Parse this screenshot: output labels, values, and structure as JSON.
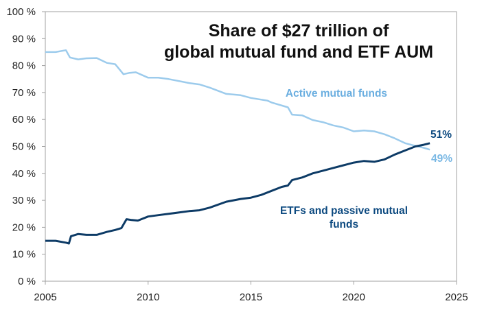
{
  "chart_data": {
    "type": "line",
    "title": [
      "Share of $27 trillion of",
      "global mutual fund and ETF AUM"
    ],
    "xlim": [
      2005,
      2025
    ],
    "ylim": [
      0,
      100
    ],
    "x_ticks": [
      "2005",
      "2010",
      "2015",
      "2020",
      "2025"
    ],
    "y_ticks": [
      "0 %",
      "10 %",
      "20 %",
      "30 %",
      "40 %",
      "50 %",
      "60 %",
      "70 %",
      "80 %",
      "90 %",
      "100 %"
    ],
    "grid": false,
    "series": [
      {
        "name": "Active mutual funds",
        "color": "#9ccbec",
        "end_label": "49%",
        "points": [
          [
            2005,
            85
          ],
          [
            2005.5,
            85
          ],
          [
            2006,
            85.7
          ],
          [
            2006.2,
            83
          ],
          [
            2006.6,
            82.3
          ],
          [
            2007,
            82.7
          ],
          [
            2007.5,
            82.8
          ],
          [
            2008,
            81
          ],
          [
            2008.4,
            80.5
          ],
          [
            2008.8,
            76.8
          ],
          [
            2009.1,
            77.3
          ],
          [
            2009.4,
            77.5
          ],
          [
            2010,
            75.5
          ],
          [
            2010.5,
            75.5
          ],
          [
            2011,
            75
          ],
          [
            2012,
            73.5
          ],
          [
            2012.5,
            73
          ],
          [
            2013,
            71.8
          ],
          [
            2013.8,
            69.5
          ],
          [
            2014.5,
            69
          ],
          [
            2015,
            68
          ],
          [
            2015.8,
            67
          ],
          [
            2016,
            66.3
          ],
          [
            2016.8,
            64.5
          ],
          [
            2017,
            61.8
          ],
          [
            2017.5,
            61.5
          ],
          [
            2018,
            59.8
          ],
          [
            2018.5,
            59
          ],
          [
            2019,
            57.8
          ],
          [
            2019.5,
            57
          ],
          [
            2020,
            55.6
          ],
          [
            2020.5,
            55.9
          ],
          [
            2021,
            55.6
          ],
          [
            2021.5,
            54.5
          ],
          [
            2022,
            53
          ],
          [
            2022.5,
            51.2
          ],
          [
            2023,
            50.2
          ],
          [
            2023.4,
            49.5
          ],
          [
            2023.7,
            48.8
          ]
        ]
      },
      {
        "name": "ETFs and passive mutual funds",
        "color": "#0d3b66",
        "end_label": "51%",
        "points": [
          [
            2005,
            15
          ],
          [
            2005.5,
            15
          ],
          [
            2006,
            14.3
          ],
          [
            2006.15,
            14
          ],
          [
            2006.25,
            16.7
          ],
          [
            2006.6,
            17.5
          ],
          [
            2007,
            17.2
          ],
          [
            2007.5,
            17.2
          ],
          [
            2008,
            18.3
          ],
          [
            2008.4,
            19
          ],
          [
            2008.7,
            19.7
          ],
          [
            2008.95,
            23
          ],
          [
            2009.2,
            22.7
          ],
          [
            2009.5,
            22.5
          ],
          [
            2010,
            24
          ],
          [
            2010.5,
            24.5
          ],
          [
            2011,
            25
          ],
          [
            2012,
            26
          ],
          [
            2012.5,
            26.3
          ],
          [
            2013,
            27.3
          ],
          [
            2013.8,
            29.5
          ],
          [
            2014.5,
            30.5
          ],
          [
            2015,
            31
          ],
          [
            2015.5,
            32
          ],
          [
            2016,
            33.5
          ],
          [
            2016.5,
            35
          ],
          [
            2016.8,
            35.5
          ],
          [
            2017,
            37.5
          ],
          [
            2017.5,
            38.5
          ],
          [
            2018,
            40
          ],
          [
            2018.5,
            41
          ],
          [
            2019,
            42
          ],
          [
            2019.5,
            43
          ],
          [
            2020,
            44
          ],
          [
            2020.5,
            44.6
          ],
          [
            2021,
            44.3
          ],
          [
            2021.5,
            45.2
          ],
          [
            2022,
            47
          ],
          [
            2022.5,
            48.5
          ],
          [
            2023,
            50
          ],
          [
            2023.4,
            50.6
          ],
          [
            2023.7,
            51.2
          ]
        ]
      }
    ],
    "annotations": {
      "active_label": "Active mutual funds",
      "passive_label": [
        "ETFs and passive mutual",
        "funds"
      ]
    }
  }
}
